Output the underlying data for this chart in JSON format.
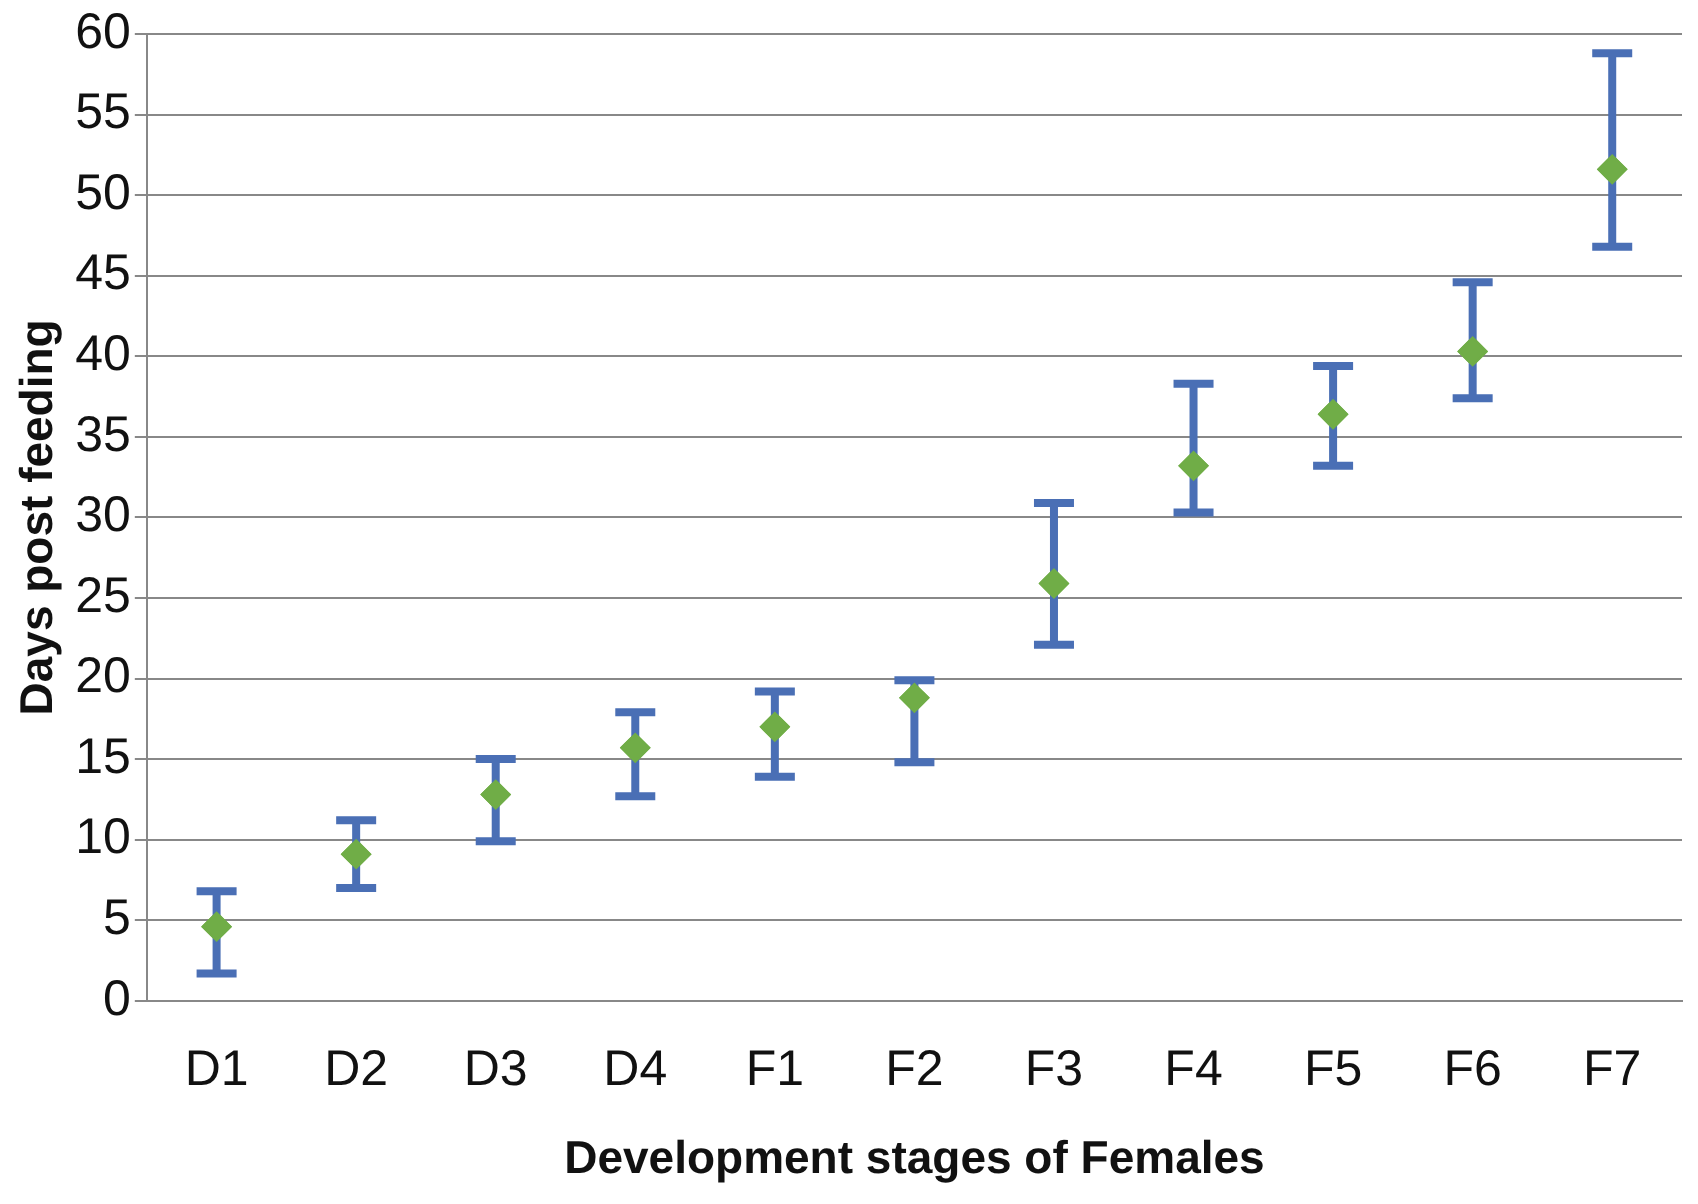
{
  "chart_data": {
    "type": "scatter",
    "xlabel": "Development stages of Females",
    "ylabel": "Days post feeding",
    "categories": [
      "D1",
      "D2",
      "D3",
      "D4",
      "F1",
      "F2",
      "F3",
      "F4",
      "F5",
      "F6",
      "F7"
    ],
    "series": [
      {
        "color": "#70ad47",
        "values": [
          4.6,
          9.1,
          12.8,
          15.7,
          17.0,
          18.8,
          25.9,
          33.2,
          36.4,
          40.3,
          51.6
        ],
        "errors": [
          [
            1.7,
            6.8
          ],
          [
            7.0,
            11.2
          ],
          [
            9.9,
            15.0
          ],
          [
            12.7,
            17.9
          ],
          [
            13.9,
            19.2
          ],
          [
            14.8,
            19.9
          ],
          [
            22.1,
            30.9
          ],
          [
            30.3,
            38.3
          ],
          [
            33.2,
            39.4
          ],
          [
            37.4,
            44.6
          ],
          [
            46.8,
            58.8
          ]
        ]
      }
    ],
    "ylim": [
      0,
      60
    ],
    "yticks": [
      0,
      5,
      10,
      15,
      20,
      25,
      30,
      35,
      40,
      45,
      50,
      55,
      60
    ],
    "grid": "y",
    "marker": "diamond",
    "legend": false
  }
}
